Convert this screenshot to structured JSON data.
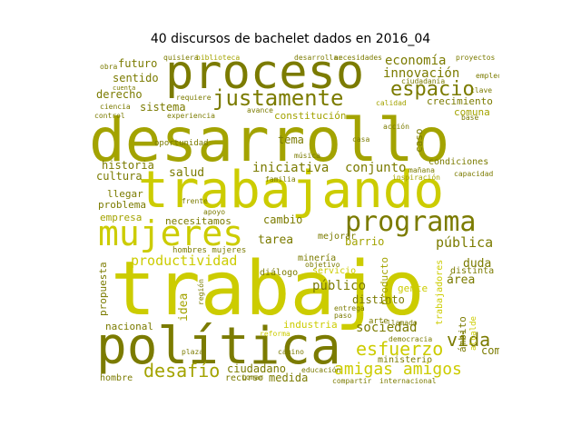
{
  "title": "40 discursos de bachelet dados en 2016_04",
  "colors": {
    "dark": "#7b7b00",
    "mid": "#a3a300",
    "light": "#cccc00",
    "bright": "#d8d800"
  },
  "words": {
    "trabajo": "trabajo",
    "trabajando": "trabajando",
    "desarrollo": "desarrollo",
    "proceso": "proceso",
    "politica": "política",
    "mujeres": "mujeres",
    "programa": "programa",
    "justamente": "justamente",
    "espacio": "espacio",
    "amigas_amigos": "amigas amigos",
    "esfuerzo": "esfuerzo",
    "desafio": "desafío",
    "productividad": "productividad",
    "publica": "pública",
    "publico": "público",
    "sociedad": "sociedad",
    "vida": "vida",
    "iniciativa": "iniciativa",
    "conjunto": "conjunto",
    "economia": "economía",
    "innovacion": "innovación",
    "historia": "historia",
    "cultura": "cultura",
    "salud": "salud",
    "tarea": "tarea",
    "cambio": "cambio",
    "barrio": "barrio",
    "duda": "duda",
    "area": "área",
    "compromiso": "compromiso",
    "idea": "idea",
    "medida": "medida",
    "ciudadano": "ciudadano",
    "sentido": "sentido",
    "futuro": "futuro",
    "derecho": "derecho",
    "sistema": "sistema",
    "constitucion": "constitución",
    "tema": "tema",
    "crecimiento": "crecimiento",
    "comuna": "comuna",
    "condiciones": "condiciones",
    "distinto": "distinto",
    "gente": "gente",
    "mineria": "minería",
    "industria": "industria",
    "dialogo": "diálogo",
    "mejorar": "mejorar",
    "necesitamos": "necesitamos",
    "hombres_mujeres": "hombres mujeres",
    "llegar": "llegar",
    "problema": "problema",
    "empresa": "empresa",
    "nacional": "nacional",
    "propuesta": "propuesta",
    "ministerio": "ministerio",
    "hombre": "hombre",
    "recurso": "recurso",
    "oportunidad": "oportunidad",
    "caso": "caso",
    "producto": "producto",
    "trabajadores": "trabajadores",
    "distinta": "distinta",
    "ambito": "ámbito",
    "servicio": "servicio",
    "apoyo": "apoyo",
    "capacidad": "capacidad",
    "manana": "mañana",
    "ciudadania": "ciudadanía",
    "proyectos": "proyectos",
    "biblioteca": "biblioteca",
    "quisiera": "quisiera",
    "desarrollar": "desarrollar",
    "necesidades": "necesidades",
    "clave": "clave",
    "base": "base",
    "casa": "casa",
    "ciencia": "ciencia",
    "control": "control",
    "experiencia": "experiencia",
    "familia": "familia",
    "musica": "música",
    "compartir": "compartir",
    "internacional": "internacional",
    "objetivo": "objetivo",
    "entrega": "entrega",
    "arte": "arte",
    "paso": "paso",
    "llamado": "llamado",
    "democracia": "democracia",
    "alcalde": "alcalde",
    "plaza": "plaza",
    "region": "región",
    "frente": "frente",
    "requiere": "requiere",
    "calidad": "calidad",
    "accion": "acción",
    "educacion": "educación",
    "avance": "avance",
    "reforma": "reforma",
    "tomar": "tomar",
    "camino": "camino",
    "obra": "obra",
    "cuenta": "cuenta",
    "inspiracion": "inspiración",
    "empleo": "empleo"
  }
}
